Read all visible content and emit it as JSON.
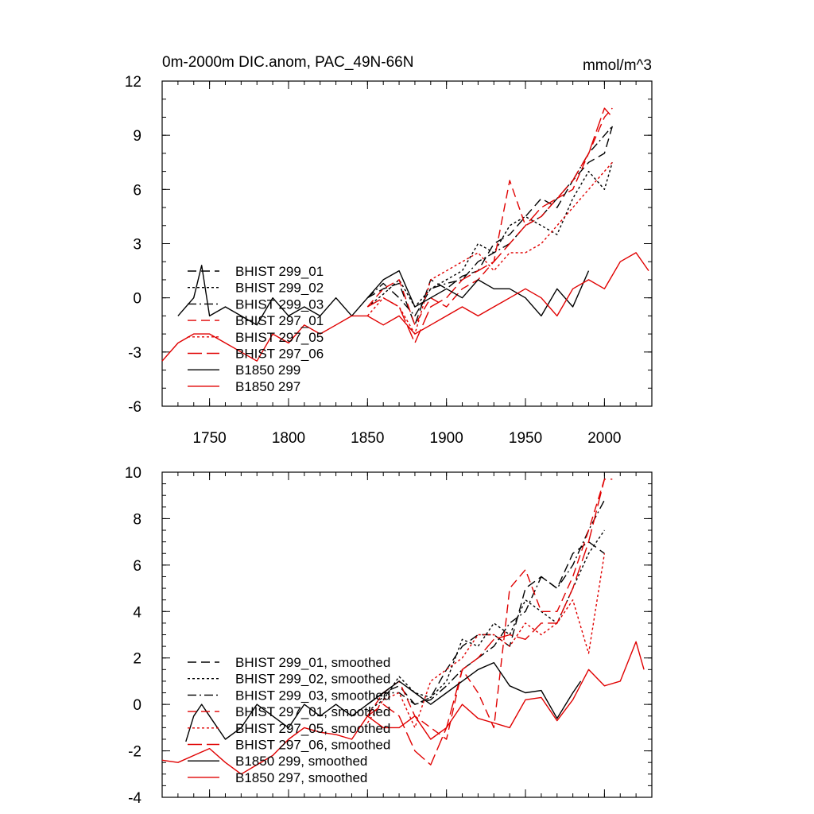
{
  "chart_data": [
    {
      "type": "line",
      "title": "0m-2000m DIC.anom, PAC_49N-66N",
      "units": "mmol/m^3",
      "xlim": [
        1720,
        2030
      ],
      "ylim": [
        -6,
        12
      ],
      "yticks": [
        "12",
        "9",
        "6",
        "3",
        "0",
        "-3",
        "-6"
      ],
      "xticks": [
        "1750",
        "1800",
        "1850",
        "1900",
        "1950",
        "2000"
      ],
      "legend_position": "lower-left",
      "series": [
        {
          "name": "BHIST 299_01",
          "color": "#000000",
          "dash": "dashed",
          "x": [
            1850,
            1860,
            1870,
            1880,
            1890,
            1900,
            1910,
            1920,
            1930,
            1940,
            1950,
            1960,
            1970,
            1980,
            1990,
            2000,
            2005
          ],
          "y": [
            0.0,
            0.5,
            0.8,
            -1.5,
            1.0,
            0.5,
            1.2,
            1.5,
            3.0,
            3.5,
            4.5,
            5.5,
            5.0,
            6.5,
            7.5,
            8.0,
            9.5
          ]
        },
        {
          "name": "BHIST 299_02",
          "color": "#000000",
          "dash": "dotted",
          "x": [
            1850,
            1860,
            1870,
            1880,
            1890,
            1900,
            1910,
            1920,
            1930,
            1940,
            1950,
            1960,
            1970,
            1980,
            1990,
            2000,
            2005
          ],
          "y": [
            -0.5,
            0.2,
            1.0,
            -0.5,
            0.5,
            1.0,
            1.5,
            3.0,
            2.5,
            4.0,
            4.5,
            4.0,
            3.5,
            5.5,
            7.0,
            6.0,
            7.5
          ]
        },
        {
          "name": "BHIST 299_03",
          "color": "#000000",
          "dash": "dashdot",
          "x": [
            1850,
            1860,
            1870,
            1880,
            1890,
            1900,
            1910,
            1920,
            1930,
            1940,
            1950,
            1960,
            1970,
            1980,
            1990,
            2000,
            2005
          ],
          "y": [
            0.0,
            0.8,
            0.0,
            -1.0,
            0.5,
            0.8,
            1.0,
            2.0,
            2.5,
            3.0,
            4.0,
            4.5,
            5.5,
            6.5,
            8.0,
            9.0,
            9.5
          ]
        },
        {
          "name": "BHIST 297_01",
          "color": "#e00000",
          "dash": "dashed",
          "x": [
            1850,
            1860,
            1870,
            1880,
            1890,
            1900,
            1910,
            1920,
            1930,
            1940,
            1950,
            1960,
            1970,
            1980,
            1990,
            2000,
            2005
          ],
          "y": [
            -0.5,
            0.5,
            1.0,
            -1.5,
            0.0,
            -0.5,
            0.5,
            1.0,
            2.0,
            6.5,
            4.0,
            4.5,
            5.5,
            6.0,
            8.0,
            10.0,
            10.5
          ]
        },
        {
          "name": "BHIST 297_05",
          "color": "#e00000",
          "dash": "dotted",
          "x": [
            1850,
            1860,
            1870,
            1880,
            1890,
            1900,
            1910,
            1920,
            1930,
            1940,
            1950,
            1960,
            1970,
            1980,
            1990,
            2000,
            2005
          ],
          "y": [
            -1.0,
            0.0,
            -0.5,
            -2.0,
            1.0,
            1.5,
            2.0,
            2.5,
            1.5,
            2.5,
            2.5,
            3.0,
            4.0,
            5.0,
            6.0,
            7.0,
            7.5
          ]
        },
        {
          "name": "BHIST 297_06",
          "color": "#e00000",
          "dash": "longdash",
          "x": [
            1850,
            1860,
            1870,
            1880,
            1890,
            1900,
            1910,
            1920,
            1930,
            1940,
            1950,
            1960,
            1970,
            1980,
            1990,
            2000,
            2005
          ],
          "y": [
            -0.5,
            0.0,
            -0.5,
            -2.5,
            -0.5,
            0.0,
            1.0,
            1.5,
            2.0,
            3.0,
            4.0,
            5.0,
            5.5,
            6.5,
            8.0,
            10.5,
            10.0
          ]
        },
        {
          "name": "B1850 299",
          "color": "#000000",
          "dash": "solid",
          "x": [
            1730,
            1740,
            1745,
            1750,
            1760,
            1770,
            1780,
            1790,
            1800,
            1810,
            1820,
            1830,
            1840,
            1850,
            1860,
            1870,
            1880,
            1890,
            1900,
            1910,
            1920,
            1930,
            1940,
            1950,
            1960,
            1970,
            1980,
            1990
          ],
          "y": [
            -1.0,
            0.0,
            1.8,
            -1.0,
            -0.5,
            -1.0,
            -1.5,
            0.0,
            -1.0,
            -0.5,
            -1.0,
            0.0,
            -1.0,
            0.0,
            1.0,
            1.5,
            -0.5,
            0.0,
            0.5,
            0.0,
            1.0,
            0.5,
            0.5,
            0.0,
            -1.0,
            0.5,
            -0.5,
            1.5
          ]
        },
        {
          "name": "B1850 297",
          "color": "#e00000",
          "dash": "solid",
          "x": [
            1720,
            1730,
            1740,
            1750,
            1760,
            1770,
            1780,
            1790,
            1800,
            1810,
            1820,
            1830,
            1840,
            1850,
            1860,
            1870,
            1880,
            1890,
            1900,
            1910,
            1920,
            1930,
            1940,
            1950,
            1960,
            1970,
            1980,
            1990,
            2000,
            2010,
            2020,
            2028
          ],
          "y": [
            -3.5,
            -2.5,
            -2.0,
            -2.0,
            -2.5,
            -3.0,
            -3.5,
            -2.0,
            -2.5,
            -1.5,
            -2.0,
            -1.5,
            -1.0,
            -1.0,
            -1.5,
            -1.0,
            -2.0,
            -1.5,
            -1.0,
            -0.5,
            -1.0,
            -0.5,
            0.0,
            0.5,
            0.0,
            -1.0,
            0.5,
            1.0,
            0.5,
            2.0,
            2.5,
            1.5
          ]
        }
      ]
    },
    {
      "type": "line",
      "title": "",
      "xlim": [
        1720,
        2030
      ],
      "ylim": [
        -4,
        10
      ],
      "yticks": [
        "10",
        "8",
        "6",
        "4",
        "2",
        "0",
        "-2",
        "-4"
      ],
      "legend_position": "lower-left",
      "series": [
        {
          "name": "BHIST 299_01, smoothed",
          "color": "#000000",
          "dash": "dashed",
          "x": [
            1850,
            1860,
            1870,
            1880,
            1890,
            1900,
            1910,
            1920,
            1930,
            1940,
            1950,
            1960,
            1970,
            1980,
            1990,
            2000
          ],
          "y": [
            0.0,
            0.5,
            0.8,
            0.0,
            0.3,
            1.5,
            2.5,
            3.0,
            3.0,
            2.5,
            5.0,
            5.5,
            5.0,
            6.5,
            7.0,
            6.5
          ]
        },
        {
          "name": "BHIST 299_02, smoothed",
          "color": "#000000",
          "dash": "dotted",
          "x": [
            1850,
            1860,
            1870,
            1880,
            1890,
            1900,
            1910,
            1920,
            1930,
            1940,
            1950,
            1960,
            1970,
            1980,
            1990,
            2000
          ],
          "y": [
            -0.3,
            0.2,
            1.2,
            0.5,
            0.3,
            1.0,
            2.8,
            2.5,
            3.5,
            3.0,
            4.5,
            4.0,
            3.5,
            5.0,
            6.5,
            7.5
          ]
        },
        {
          "name": "BHIST 299_03, smoothed",
          "color": "#000000",
          "dash": "dashdot",
          "x": [
            1850,
            1860,
            1870,
            1880,
            1890,
            1900,
            1910,
            1920,
            1930,
            1940,
            1950,
            1960,
            1970,
            1980,
            1990,
            2000
          ],
          "y": [
            0.0,
            0.5,
            0.5,
            0.0,
            0.2,
            0.8,
            1.5,
            2.0,
            2.5,
            3.5,
            4.0,
            5.5,
            5.0,
            6.0,
            7.5,
            8.8
          ]
        },
        {
          "name": "BHIST 297_01, smoothed",
          "color": "#e00000",
          "dash": "dashed",
          "x": [
            1850,
            1860,
            1870,
            1880,
            1890,
            1900,
            1910,
            1920,
            1930,
            1940,
            1950,
            1960,
            1970,
            1980,
            1990,
            2000,
            2005
          ],
          "y": [
            -0.5,
            0.5,
            1.0,
            -0.5,
            -1.0,
            -1.5,
            1.5,
            0.5,
            -1.0,
            5.0,
            5.8,
            4.0,
            4.0,
            5.5,
            7.5,
            9.7,
            9.7
          ]
        },
        {
          "name": "BHIST 297_05, smoothed",
          "color": "#e00000",
          "dash": "dotted",
          "x": [
            1850,
            1860,
            1870,
            1880,
            1890,
            1900,
            1910,
            1920,
            1930,
            1940,
            1950,
            1960,
            1970,
            1980,
            1990,
            2000
          ],
          "y": [
            -0.8,
            0.2,
            0.5,
            -1.0,
            1.0,
            1.5,
            2.0,
            3.0,
            3.0,
            2.5,
            3.5,
            3.0,
            3.5,
            4.5,
            2.2,
            6.5
          ]
        },
        {
          "name": "BHIST 297_06, smoothed",
          "color": "#e00000",
          "dash": "longdash",
          "x": [
            1850,
            1860,
            1870,
            1880,
            1890,
            1900,
            1910,
            1920,
            1930,
            1940,
            1950,
            1960,
            1970,
            1980,
            1990,
            2000
          ],
          "y": [
            -0.5,
            0.0,
            -0.5,
            -2.0,
            -2.6,
            -1.0,
            1.5,
            2.0,
            2.8,
            3.0,
            2.8,
            3.5,
            3.5,
            5.0,
            7.0,
            9.7
          ]
        },
        {
          "name": "B1850 299, smoothed",
          "color": "#000000",
          "dash": "solid",
          "x": [
            1735,
            1740,
            1745,
            1750,
            1760,
            1770,
            1780,
            1790,
            1800,
            1810,
            1820,
            1830,
            1840,
            1850,
            1860,
            1870,
            1880,
            1890,
            1900,
            1910,
            1920,
            1930,
            1940,
            1950,
            1960,
            1970,
            1980,
            1985
          ],
          "y": [
            -1.6,
            -0.5,
            0.0,
            -0.5,
            -1.5,
            -1.0,
            0.0,
            -0.5,
            -1.0,
            0.0,
            -0.5,
            0.0,
            -0.5,
            0.0,
            0.5,
            1.0,
            0.5,
            0.0,
            0.5,
            1.0,
            1.5,
            1.8,
            0.8,
            0.5,
            0.6,
            -0.6,
            0.5,
            1.0
          ]
        },
        {
          "name": "B1850 297, smoothed",
          "color": "#e00000",
          "dash": "solid",
          "x": [
            1720,
            1730,
            1740,
            1750,
            1760,
            1770,
            1780,
            1790,
            1800,
            1810,
            1820,
            1830,
            1840,
            1850,
            1860,
            1870,
            1880,
            1890,
            1900,
            1910,
            1920,
            1930,
            1940,
            1950,
            1960,
            1970,
            1980,
            1990,
            2000,
            2010,
            2020,
            2025
          ],
          "y": [
            -2.4,
            -2.5,
            -2.2,
            -1.9,
            -2.5,
            -3.0,
            -2.6,
            -2.2,
            -1.5,
            -1.0,
            -1.2,
            -1.3,
            -1.5,
            -0.5,
            -1.0,
            -1.0,
            -0.5,
            -1.5,
            -1.0,
            0.0,
            -0.6,
            -0.8,
            -1.0,
            0.2,
            0.3,
            -0.7,
            0.2,
            1.5,
            0.8,
            1.0,
            2.7,
            1.5
          ]
        }
      ]
    }
  ]
}
